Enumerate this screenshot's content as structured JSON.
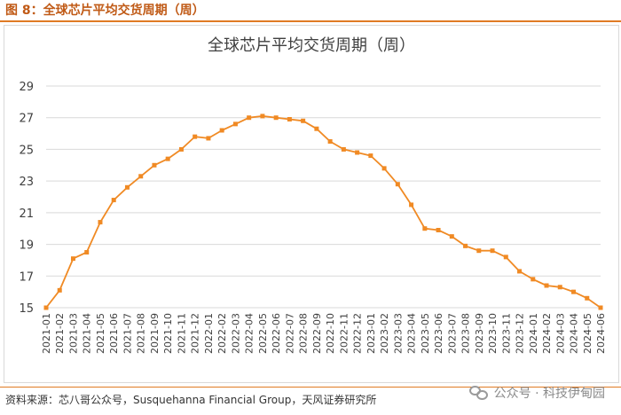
{
  "figure": {
    "label": "图 8：全球芯片平均交货周期（周）"
  },
  "source": "资料来源：芯八哥公众号，Susquehanna Financial Group，天风证券研究所",
  "watermark": {
    "text": "公众号 · 科技伊甸园",
    "icon": "wechat-icon"
  },
  "colors": {
    "series": "#f08a24",
    "accent": "#c05a16",
    "grid": "#d9d9d9"
  },
  "chart_data": {
    "type": "line",
    "title": "全球芯片平均交货周期（周）",
    "xlabel": "",
    "ylabel": "",
    "ylim": [
      15,
      29
    ],
    "yticks": [
      15,
      17,
      19,
      21,
      23,
      25,
      27,
      29
    ],
    "grid": true,
    "legend": "none",
    "x": [
      "2021-01",
      "2021-02",
      "2021-03",
      "2021-04",
      "2021-05",
      "2021-06",
      "2021-07",
      "2021-08",
      "2021-09",
      "2021-10",
      "2021-11",
      "2021-12",
      "2022-01",
      "2022-02",
      "2022-03",
      "2022-04",
      "2022-05",
      "2022-06",
      "2022-07",
      "2022-08",
      "2022-09",
      "2022-10",
      "2022-11",
      "2022-12",
      "2023-01",
      "2023-02",
      "2023-03",
      "2023-04",
      "2023-05",
      "2023-06",
      "2023-07",
      "2023-08",
      "2023-09",
      "2023-10",
      "2023-11",
      "2023-12",
      "2024-01",
      "2024-02",
      "2024-03",
      "2024-04",
      "2024-05",
      "2024-06"
    ],
    "series": [
      {
        "values": [
          15.0,
          16.1,
          18.1,
          18.5,
          20.4,
          21.8,
          22.6,
          23.3,
          24.0,
          24.4,
          25.0,
          25.8,
          25.7,
          26.2,
          26.6,
          27.0,
          27.1,
          27.0,
          26.9,
          26.8,
          26.3,
          25.5,
          25.0,
          24.8,
          24.6,
          23.8,
          22.8,
          21.5,
          20.0,
          19.9,
          19.5,
          18.9,
          18.6,
          18.6,
          18.2,
          17.3,
          16.8,
          16.4,
          16.3,
          16.0,
          15.6,
          15.0
        ]
      }
    ]
  }
}
